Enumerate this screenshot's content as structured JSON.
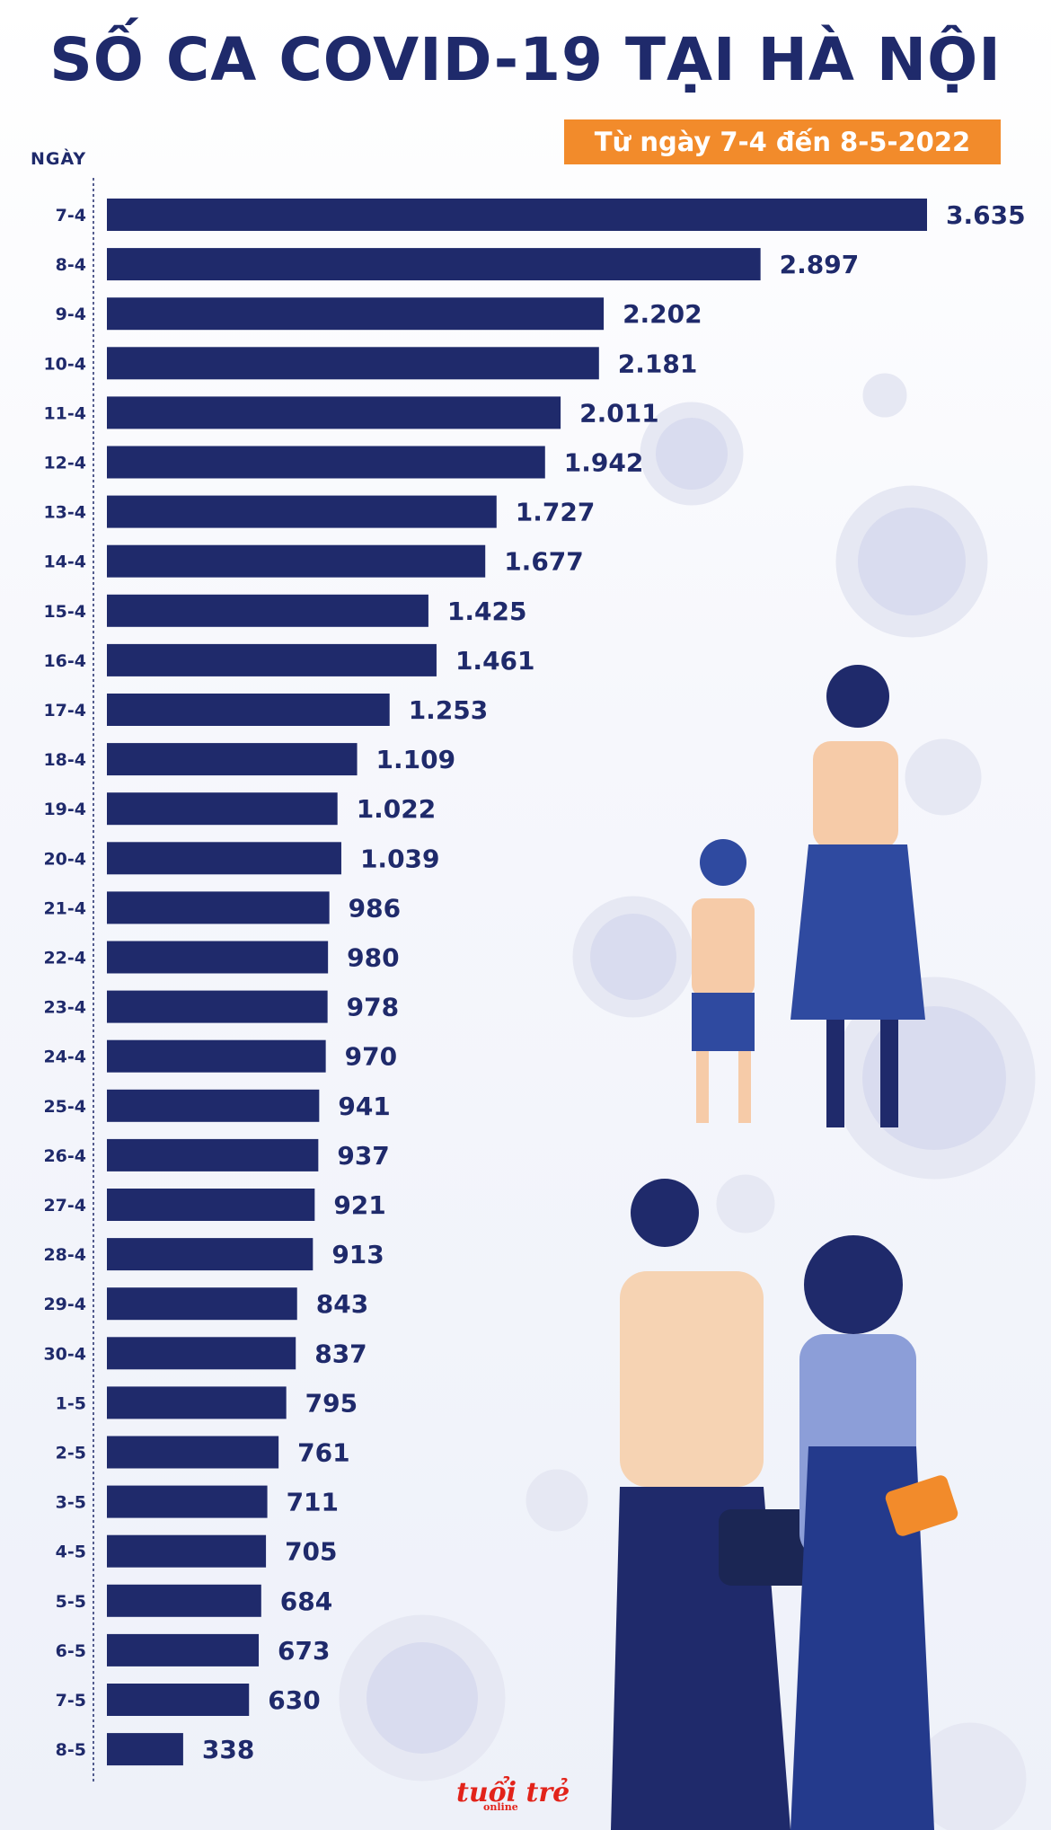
{
  "title": "SỐ CA COVID-19 TẠI HÀ NỘI",
  "subtitle": "Từ ngày 7-4 đến 8-5-2022",
  "logo": "tuổi trẻ",
  "logo_sub": "online",
  "colors": {
    "bar": "#1f2a6b",
    "accent": "#f28b2b",
    "background": "#f4f6fb"
  },
  "chart_data": {
    "type": "bar",
    "orientation": "horizontal",
    "ylabel": "NGÀY",
    "categories": [
      "7-4",
      "8-4",
      "9-4",
      "10-4",
      "11-4",
      "12-4",
      "13-4",
      "14-4",
      "15-4",
      "16-4",
      "17-4",
      "18-4",
      "19-4",
      "20-4",
      "21-4",
      "22-4",
      "23-4",
      "24-4",
      "25-4",
      "26-4",
      "27-4",
      "28-4",
      "29-4",
      "30-4",
      "1-5",
      "2-5",
      "3-5",
      "4-5",
      "5-5",
      "6-5",
      "7-5",
      "8-5"
    ],
    "values": [
      3635,
      2897,
      2202,
      2181,
      2011,
      1942,
      1727,
      1677,
      1425,
      1461,
      1253,
      1109,
      1022,
      1039,
      986,
      980,
      978,
      970,
      941,
      937,
      921,
      913,
      843,
      837,
      795,
      761,
      711,
      705,
      684,
      673,
      630,
      338
    ],
    "value_labels": [
      "3.635",
      "2.897",
      "2.202",
      "2.181",
      "2.011",
      "1.942",
      "1.727",
      "1.677",
      "1.425",
      "1.461",
      "1.253",
      "1.109",
      "1.022",
      "1.039",
      "986",
      "980",
      "978",
      "970",
      "941",
      "937",
      "921",
      "913",
      "843",
      "837",
      "795",
      "761",
      "711",
      "705",
      "684",
      "673",
      "630",
      "338"
    ],
    "xlim": [
      0,
      3635
    ],
    "grid": false,
    "legend": "none"
  }
}
